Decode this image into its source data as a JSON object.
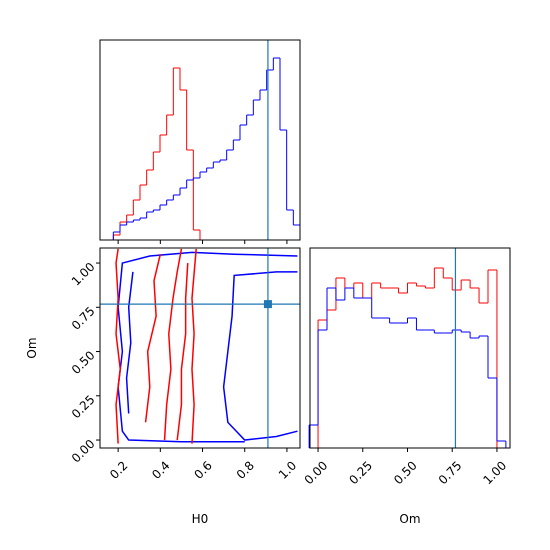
{
  "chart_data": [
    {
      "type": "histogram",
      "bins": [
        0.114,
        0.1456,
        0.1772,
        0.2088,
        0.2404,
        0.272,
        0.3036,
        0.3352,
        0.3668,
        0.3984,
        0.43,
        0.4616,
        0.4932,
        0.5248,
        0.5564,
        0.588,
        0.6196,
        0.6512,
        0.6828,
        0.7144,
        0.746,
        0.7776,
        0.8092,
        0.8408,
        0.8724,
        0.904,
        0.9356,
        0.9672,
        0.9988,
        1.0304,
        1.062
      ],
      "series": [
        {
          "color": "#ff0000",
          "values": [
            0,
            0,
            5,
            18,
            25,
            40,
            55,
            70,
            88,
            105,
            125,
            172,
            150,
            90,
            10,
            0,
            0,
            0,
            0,
            0,
            0,
            0,
            0,
            0,
            0,
            0,
            0,
            0,
            0,
            0
          ]
        },
        {
          "color": "#0000ff",
          "values": [
            0,
            0,
            8,
            15,
            18,
            20,
            22,
            28,
            30,
            35,
            40,
            45,
            52,
            60,
            62,
            68,
            72,
            78,
            80,
            90,
            100,
            115,
            125,
            140,
            150,
            170,
            182,
            110,
            30,
            15
          ]
        }
      ],
      "xlim": [
        0.114,
        1.062
      ],
      "ylim": [
        0,
        200
      ],
      "xticks": [
        0.2,
        0.4,
        0.6,
        0.8,
        {
          "value": 1,
          "label": "1.0"
        }
      ],
      "vline": 0.91,
      "truth_color": "#1f77b4"
    },
    {
      "type": "contour",
      "xlabel": "H0",
      "ylabel": "Om",
      "xlim": [
        0.114,
        1.062
      ],
      "ylim": [
        -0.045,
        1.085
      ],
      "xticks": [
        0.2,
        0.4,
        0.6,
        0.8,
        {
          "value": 1,
          "label": "1.0"
        }
      ],
      "yticks": [
        {
          "value": 0,
          "label": "0.00"
        },
        0.25,
        {
          "value": 0.5,
          "label": "0.50"
        },
        0.75,
        {
          "value": 1,
          "label": "1.00"
        }
      ],
      "series": [
        {
          "color": "#0000ff",
          "x": [
            0.8,
            0.5,
            0.25,
            0.22,
            0.2,
            0.22,
            0.2,
            0.22,
            0.35,
            0.55,
            0.75,
            1.05
          ],
          "y": [
            -0.01,
            -0.01,
            0.0,
            0.05,
            0.3,
            0.5,
            0.75,
            1.0,
            1.04,
            1.06,
            1.05,
            1.04
          ]
        },
        {
          "color": "#0000ff",
          "x": [
            1.05,
            0.95,
            0.75,
            0.74,
            0.72,
            0.7,
            0.72,
            0.8,
            0.95,
            1.05
          ],
          "y": [
            0.95,
            0.95,
            0.93,
            0.7,
            0.5,
            0.3,
            0.1,
            0.0,
            0.02,
            0.05
          ]
        },
        {
          "color": "#0000ff",
          "x": [
            0.25,
            0.24,
            0.26,
            0.25,
            0.27
          ],
          "y": [
            0.15,
            0.35,
            0.55,
            0.75,
            0.95
          ]
        },
        {
          "color": "#ff0000",
          "x": [
            0.2,
            0.19,
            0.21,
            0.19,
            0.2,
            0.19,
            0.2
          ],
          "y": [
            -0.02,
            0.2,
            0.4,
            0.6,
            0.8,
            1.0,
            1.08
          ]
        },
        {
          "color": "#ff0000",
          "x": [
            0.55,
            0.56,
            0.55,
            0.56,
            0.55,
            0.57
          ],
          "y": [
            -0.02,
            0.2,
            0.4,
            0.6,
            0.8,
            1.08
          ]
        },
        {
          "color": "#ff0000",
          "x": [
            0.42,
            0.43,
            0.45,
            0.44,
            0.46,
            0.48,
            0.5
          ],
          "y": [
            0.0,
            0.2,
            0.4,
            0.6,
            0.8,
            0.95,
            1.08
          ]
        },
        {
          "color": "#ff0000",
          "x": [
            0.48,
            0.5,
            0.5,
            0.52,
            0.52,
            0.53
          ],
          "y": [
            0.0,
            0.2,
            0.4,
            0.6,
            0.8,
            1.0
          ]
        },
        {
          "color": "#ff0000",
          "x": [
            0.33,
            0.35,
            0.34,
            0.38,
            0.37,
            0.4
          ],
          "y": [
            0.1,
            0.3,
            0.5,
            0.7,
            0.9,
            1.05
          ]
        }
      ],
      "vline": 0.91,
      "hline": 0.768,
      "marker": [
        0.91,
        0.768
      ],
      "truth_color": "#1f77b4"
    },
    {
      "type": "histogram",
      "xlabel": "Om",
      "bins": [
        -0.05,
        0.0,
        0.05,
        0.1,
        0.15,
        0.2,
        0.25,
        0.3,
        0.35,
        0.4,
        0.45,
        0.5,
        0.55,
        0.6,
        0.65,
        0.7,
        0.75,
        0.8,
        0.85,
        0.9,
        0.95,
        1.0,
        1.05
      ],
      "series": [
        {
          "color": "#ff0000",
          "values": [
            0,
            128,
            138,
            170,
            160,
            165,
            150,
            165,
            160,
            160,
            155,
            165,
            162,
            160,
            180,
            170,
            158,
            168,
            160,
            145,
            178,
            0
          ]
        },
        {
          "color": "#0000ff",
          "values": [
            23,
            118,
            160,
            148,
            160,
            150,
            150,
            130,
            130,
            125,
            125,
            130,
            118,
            118,
            115,
            115,
            118,
            116,
            110,
            112,
            70,
            7
          ]
        }
      ],
      "xlim": [
        -0.045,
        1.073
      ],
      "ylim": [
        0,
        200
      ],
      "xticks": [
        {
          "value": 0,
          "label": "0.00"
        },
        0.25,
        {
          "value": 0.5,
          "label": "0.50"
        },
        0.75,
        {
          "value": 1,
          "label": "1.00"
        }
      ],
      "vline": 0.768,
      "truth_color": "#1f77b4"
    }
  ]
}
